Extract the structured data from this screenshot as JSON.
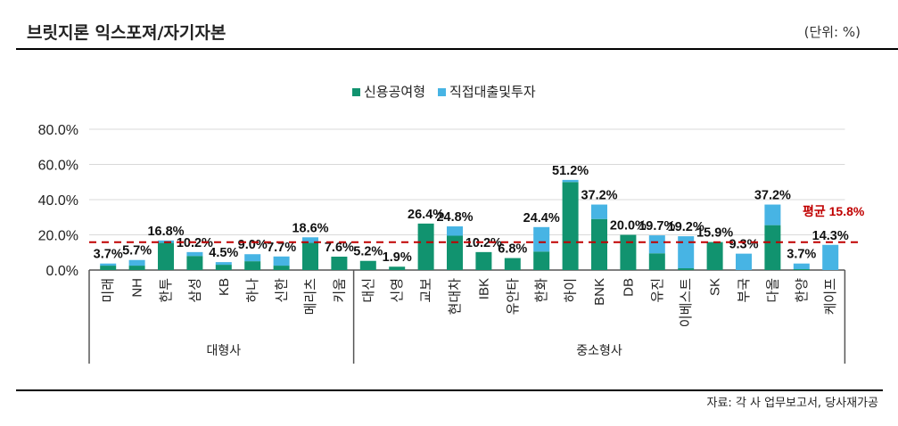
{
  "header": {
    "title": "브릿지론 익스포져/자기자본",
    "unit": "(단위: %)"
  },
  "footer": {
    "source": "자료: 각 사 업무보고서, 당사재가공"
  },
  "colors": {
    "credit": "#11936f",
    "direct": "#47b4e4",
    "average": "#c00000"
  },
  "chart_data": {
    "type": "bar",
    "stacked": true,
    "categories": [
      "미래",
      "NH",
      "한투",
      "삼성",
      "KB",
      "하나",
      "신한",
      "메리츠",
      "키움",
      "대신",
      "신영",
      "교보",
      "현대차",
      "IBK",
      "유안타",
      "한화",
      "하이",
      "BNK",
      "DB",
      "유진",
      "이베스트",
      "SK",
      "부국",
      "다올",
      "한양",
      "케이프"
    ],
    "groups": [
      {
        "name": "대형사",
        "count": 9
      },
      {
        "name": "중소형사",
        "count": 17
      }
    ],
    "series": [
      {
        "name": "신용공여형",
        "values": [
          2.5,
          2.5,
          15.5,
          8.0,
          3.0,
          5.0,
          2.5,
          15.5,
          7.6,
          5.2,
          1.9,
          26.4,
          19.5,
          10.2,
          6.8,
          10.5,
          50.0,
          29.0,
          20.0,
          9.5,
          1.0,
          15.9,
          0,
          25.5,
          0.5,
          0
        ]
      },
      {
        "name": "직접대출및투자",
        "values": [
          1.2,
          3.2,
          1.3,
          2.2,
          1.5,
          4.0,
          5.2,
          3.1,
          0,
          0,
          0,
          0,
          5.3,
          0,
          0,
          13.9,
          1.2,
          8.2,
          0,
          10.2,
          18.2,
          0,
          9.3,
          11.7,
          3.2,
          14.3
        ]
      }
    ],
    "totals": [
      "3.7%",
      "5.7%",
      "16.8%",
      "10.2%",
      "4.5%",
      "9.0%",
      "7.7%",
      "18.6%",
      "7.6%",
      "5.2%",
      "1.9%",
      "26.4%",
      "24.8%",
      "10.2%",
      "6.8%",
      "24.4%",
      "51.2%",
      "37.2%",
      "20.0%",
      "19.7%",
      "19.2%",
      "15.9%",
      "9.3%",
      "37.2%",
      "3.7%",
      "14.3%"
    ],
    "average": {
      "value": 15.8,
      "label": "평균 15.8%"
    },
    "ylim": [
      0,
      80
    ],
    "yticks": [
      "0.0%",
      "20.0%",
      "40.0%",
      "60.0%",
      "80.0%"
    ],
    "grid": true,
    "legend": "top-center"
  }
}
